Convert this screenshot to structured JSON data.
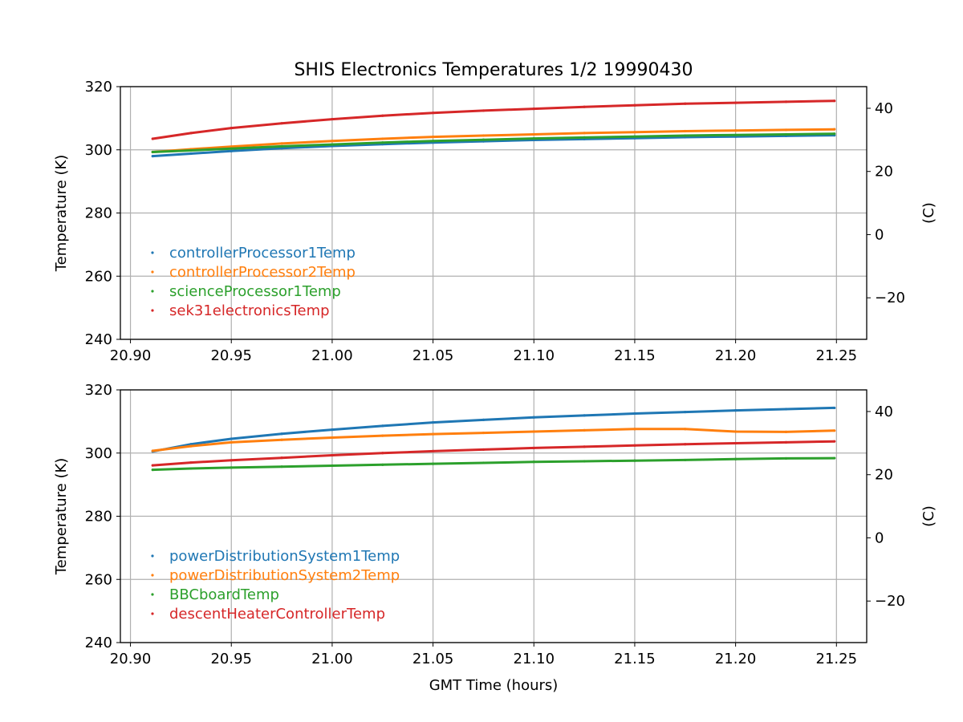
{
  "figure": {
    "title": "SHIS Electronics Temperatures 1/2 19990430"
  },
  "chart_data": [
    {
      "type": "scatter",
      "title": "SHIS Electronics Temperatures 1/2 19990430",
      "xlabel": "",
      "ylabel": "Temperature (K)",
      "y2label": "(C)",
      "xlim": [
        20.895,
        21.265
      ],
      "ylim": [
        240,
        320
      ],
      "x_ticks": [
        "20.90",
        "20.95",
        "21.00",
        "21.05",
        "21.10",
        "21.15",
        "21.20",
        "21.25"
      ],
      "y_ticks": [
        "240",
        "260",
        "280",
        "300",
        "320"
      ],
      "y2_ticks": [
        "−20",
        "0",
        "20",
        "40"
      ],
      "grid": true,
      "legend_position": "lower-left",
      "x": [
        20.911,
        20.93,
        20.95,
        20.975,
        21.0,
        21.025,
        21.05,
        21.075,
        21.1,
        21.125,
        21.15,
        21.175,
        21.2,
        21.225,
        21.249
      ],
      "series": [
        {
          "name": "controllerProcessor1Temp",
          "color": "#1f77b4",
          "values": [
            298.0,
            298.8,
            299.6,
            300.5,
            301.2,
            301.8,
            302.3,
            302.7,
            303.1,
            303.4,
            303.7,
            304.0,
            304.2,
            304.4,
            304.6
          ]
        },
        {
          "name": "controllerProcessor2Temp",
          "color": "#ff7f0e",
          "values": [
            299.3,
            300.2,
            301.0,
            302.0,
            302.8,
            303.5,
            304.1,
            304.5,
            304.9,
            305.3,
            305.6,
            305.9,
            306.1,
            306.3,
            306.5
          ]
        },
        {
          "name": "scienceProcessor1Temp",
          "color": "#2ca02c",
          "values": [
            299.3,
            299.8,
            300.4,
            301.1,
            301.7,
            302.3,
            302.8,
            303.2,
            303.6,
            303.9,
            304.2,
            304.5,
            304.7,
            304.9,
            305.1
          ]
        },
        {
          "name": "sek31electronicsTemp",
          "color": "#d62728",
          "values": [
            303.5,
            305.3,
            306.9,
            308.4,
            309.7,
            310.8,
            311.7,
            312.4,
            313.0,
            313.6,
            314.1,
            314.6,
            314.9,
            315.2,
            315.5
          ]
        }
      ]
    },
    {
      "type": "scatter",
      "title": "",
      "xlabel": "GMT Time (hours)",
      "ylabel": "Temperature (K)",
      "y2label": "(C)",
      "xlim": [
        20.895,
        21.265
      ],
      "ylim": [
        240,
        320
      ],
      "x_ticks": [
        "20.90",
        "20.95",
        "21.00",
        "21.05",
        "21.10",
        "21.15",
        "21.20",
        "21.25"
      ],
      "y_ticks": [
        "240",
        "260",
        "280",
        "300",
        "320"
      ],
      "y2_ticks": [
        "−20",
        "0",
        "20",
        "40"
      ],
      "grid": true,
      "legend_position": "lower-left",
      "x": [
        20.911,
        20.93,
        20.95,
        20.975,
        21.0,
        21.025,
        21.05,
        21.075,
        21.1,
        21.125,
        21.15,
        21.175,
        21.2,
        21.225,
        21.249
      ],
      "series": [
        {
          "name": "powerDistributionSystem1Temp",
          "color": "#1f77b4",
          "values": [
            300.5,
            302.8,
            304.5,
            306.1,
            307.4,
            308.6,
            309.7,
            310.5,
            311.3,
            311.9,
            312.5,
            313.0,
            313.5,
            313.9,
            314.3
          ]
        },
        {
          "name": "powerDistributionSystem2Temp",
          "color": "#ff7f0e",
          "values": [
            300.7,
            302.2,
            303.4,
            304.2,
            304.9,
            305.5,
            306.0,
            306.4,
            306.8,
            307.2,
            307.6,
            307.6,
            306.8,
            306.7,
            307.1
          ]
        },
        {
          "name": "BBCboardTemp",
          "color": "#2ca02c",
          "values": [
            294.7,
            295.1,
            295.4,
            295.7,
            296.0,
            296.3,
            296.6,
            296.9,
            297.2,
            297.4,
            297.6,
            297.8,
            298.1,
            298.3,
            298.4
          ]
        },
        {
          "name": "descentHeaterControllerTemp",
          "color": "#d62728",
          "values": [
            296.1,
            297.0,
            297.7,
            298.5,
            299.3,
            300.0,
            300.6,
            301.1,
            301.6,
            302.0,
            302.4,
            302.8,
            303.1,
            303.4,
            303.7
          ]
        }
      ]
    }
  ]
}
